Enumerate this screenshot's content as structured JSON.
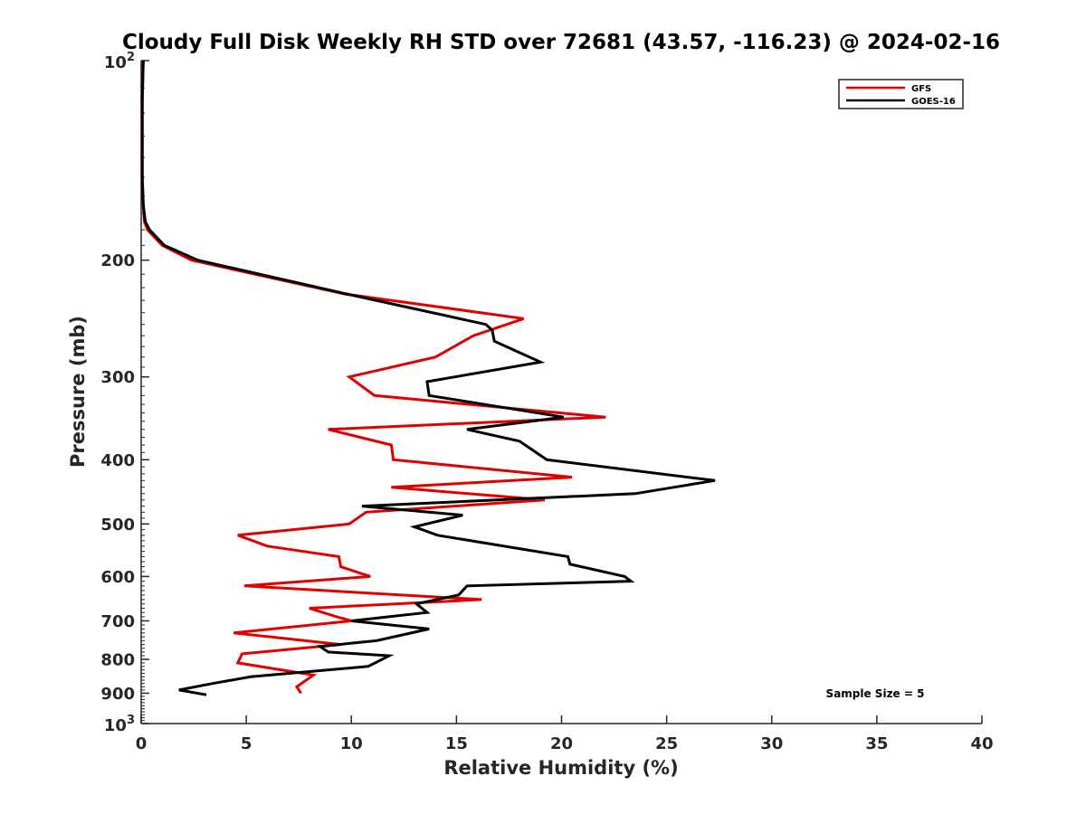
{
  "chart_data": {
    "type": "line",
    "title": "Cloudy Full Disk Weekly RH STD over 72681 (43.57, -116.23) @ 2024-02-16",
    "xlabel": "Relative Humidity (%)",
    "ylabel": "Pressure (mb)",
    "xlim": [
      0,
      40
    ],
    "ylim": [
      100,
      1000
    ],
    "yscale": "log",
    "y_reversed": true,
    "x_ticks": [
      0,
      5,
      10,
      15,
      20,
      25,
      30,
      35,
      40
    ],
    "x_tick_labels": [
      "0",
      "5",
      "10",
      "15",
      "20",
      "25",
      "30",
      "35",
      "40"
    ],
    "y_ticks": [
      200,
      300,
      400,
      500,
      600,
      700,
      800,
      900
    ],
    "y_tick_labels": [
      "200",
      "300",
      "400",
      "500",
      "600",
      "700",
      "800",
      "900"
    ],
    "y_top_label": {
      "base": "10",
      "exp": "2"
    },
    "y_bottom_label": {
      "base": "10",
      "exp": "3"
    },
    "grid": false,
    "legend_position": "top-right",
    "series": [
      {
        "name": "GFS",
        "color": "#e00000",
        "x": [
          0.1,
          0.05,
          0.05,
          0.05,
          0.1,
          0.15,
          0.3,
          1.0,
          2.4,
          9.7,
          18.2,
          15.8,
          14.0,
          9.9,
          11.1,
          22.1,
          8.9,
          11.9,
          12.0,
          20.5,
          11.9,
          19.2,
          10.7,
          9.9,
          4.6,
          6.0,
          9.4,
          9.5,
          10.9,
          4.9,
          16.2,
          8.0,
          9.3,
          10.0,
          4.4,
          9.5,
          4.8,
          4.6,
          8.2,
          7.4,
          7.6
        ],
        "y": [
          100,
          115,
          130,
          150,
          165,
          175,
          180,
          190,
          200,
          225,
          245,
          260,
          280,
          300,
          320,
          345,
          360,
          380,
          400,
          425,
          440,
          460,
          480,
          500,
          520,
          540,
          560,
          580,
          600,
          620,
          650,
          670,
          690,
          700,
          730,
          760,
          785,
          810,
          845,
          880,
          900
        ]
      },
      {
        "name": "GOES-16",
        "color": "#000000",
        "x": [
          0.1,
          0.05,
          0.05,
          0.05,
          0.1,
          0.2,
          0.4,
          1.1,
          2.7,
          9.8,
          16.4,
          16.7,
          16.8,
          19.0,
          13.6,
          13.7,
          20.1,
          15.5,
          18.0,
          19.3,
          27.3,
          23.5,
          10.5,
          15.3,
          13.0,
          14.1,
          20.3,
          20.4,
          23.0,
          23.3,
          15.5,
          15.1,
          13.1,
          13.6,
          10.0,
          13.7,
          11.2,
          8.5,
          8.9,
          11.8,
          10.8,
          5.2,
          3.4,
          1.8,
          3.1
        ],
        "y": [
          100,
          115,
          130,
          150,
          165,
          175,
          180,
          190,
          200,
          225,
          250,
          255,
          265,
          285,
          305,
          320,
          345,
          360,
          375,
          400,
          430,
          450,
          470,
          485,
          505,
          520,
          560,
          575,
          600,
          610,
          620,
          640,
          660,
          680,
          700,
          720,
          750,
          765,
          780,
          790,
          820,
          850,
          870,
          890,
          905
        ]
      }
    ],
    "annotations": [
      "Sample Size = 5"
    ]
  }
}
